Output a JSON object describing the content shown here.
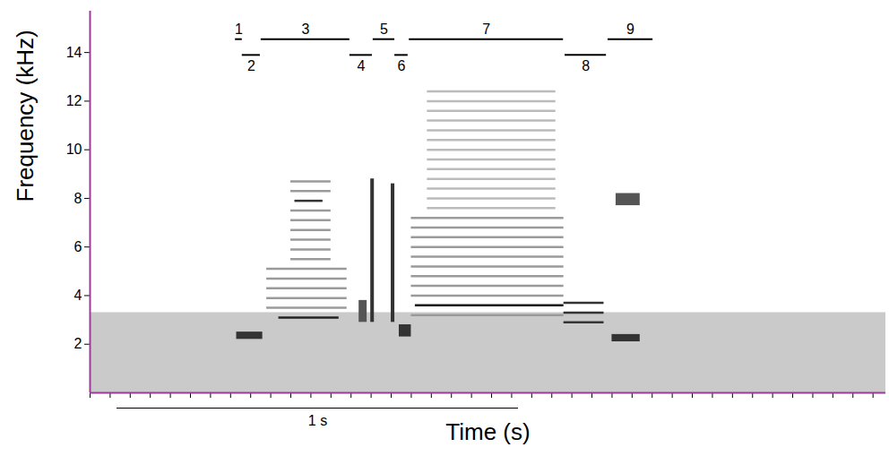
{
  "chart_data": {
    "type": "spectrogram",
    "xlabel": "Time (s)",
    "ylabel": "Frequency (kHz)",
    "xlim": [
      0,
      1.982
    ],
    "ylim": [
      0,
      15.7
    ],
    "yticks": [
      2,
      4,
      6,
      8,
      10,
      12,
      14
    ],
    "xticks": [
      0,
      0.05,
      0.1,
      0.15,
      0.2,
      0.25,
      0.3,
      0.35,
      0.4,
      0.45,
      0.5,
      0.55,
      0.6,
      0.65,
      0.7,
      0.75,
      0.8,
      0.85,
      0.9,
      0.95,
      1,
      1.05,
      1.1,
      1.15,
      1.2,
      1.25,
      1.3,
      1.35,
      1.4,
      1.45,
      1.5,
      1.55,
      1.6,
      1.65,
      1.7,
      1.75,
      1.8,
      1.85,
      1.9,
      1.95
    ],
    "tick_labels": "y",
    "grid": false,
    "color": "#9a3c9a",
    "noise": {
      "t": [
        0,
        1.982
      ],
      "f": [
        0,
        3.3
      ],
      "color": "#b8b8b8"
    },
    "harmonics": [
      {
        "t": [
          0.44,
          0.64
        ],
        "f": [
          3.5,
          3.9,
          4.3,
          4.7,
          5.1
        ],
        "color": "#9a9a9a"
      },
      {
        "t": [
          0.47,
          0.62
        ],
        "f": [
          3.1
        ],
        "color": "#222222"
      },
      {
        "t": [
          0.5,
          0.6
        ],
        "f": [
          5.5,
          5.9,
          6.3,
          6.7,
          7.1,
          7.5,
          8.3,
          8.7
        ],
        "color": "#9a9a9a"
      },
      {
        "t": [
          0.51,
          0.58
        ],
        "f": [
          7.9
        ],
        "color": "#333333"
      },
      {
        "t": [
          0.8,
          1.18
        ],
        "f": [
          3.2,
          4.0,
          4.4,
          4.8,
          5.2,
          5.6,
          6.0,
          6.4,
          6.8,
          7.2
        ],
        "color": "#9a9a9a"
      },
      {
        "t": [
          0.81,
          1.18
        ],
        "f": [
          3.6
        ],
        "color": "#111111"
      },
      {
        "t": [
          0.84,
          1.16
        ],
        "f": [
          7.6,
          8.0,
          8.4,
          8.8,
          9.2,
          9.6,
          10.0,
          10.4,
          10.8,
          11.2,
          11.6,
          12.0,
          12.4
        ],
        "color": "#bbbbbb"
      },
      {
        "t": [
          1.18,
          1.28
        ],
        "f": [
          2.9,
          3.3,
          3.7
        ],
        "color": "#333333"
      }
    ],
    "blobs": [
      {
        "t": [
          0.365,
          0.43
        ],
        "f": [
          2.2,
          2.5
        ],
        "color": "#333333"
      },
      {
        "t": [
          0.67,
          0.69
        ],
        "f": [
          2.9,
          3.8
        ],
        "color": "#555555"
      },
      {
        "t": [
          0.699,
          0.708
        ],
        "f": [
          2.9,
          8.8
        ],
        "color": "#333333"
      },
      {
        "t": [
          0.75,
          0.759
        ],
        "f": [
          2.9,
          8.6
        ],
        "color": "#333333"
      },
      {
        "t": [
          0.77,
          0.8
        ],
        "f": [
          2.3,
          2.8
        ],
        "color": "#333333"
      },
      {
        "t": [
          1.3,
          1.37
        ],
        "f": [
          2.1,
          2.4
        ],
        "color": "#333333"
      },
      {
        "t": [
          1.31,
          1.37
        ],
        "f": [
          7.7,
          8.2
        ],
        "color": "#555555"
      }
    ],
    "segments": [
      {
        "label": "1",
        "t": [
          0.362,
          0.379
        ],
        "f": 14.55
      },
      {
        "label": "2",
        "t": [
          0.379,
          0.424
        ],
        "f": 13.9
      },
      {
        "label": "3",
        "t": [
          0.426,
          0.647
        ],
        "f": 14.55
      },
      {
        "label": "4",
        "t": [
          0.647,
          0.703
        ],
        "f": 13.9
      },
      {
        "label": "5",
        "t": [
          0.705,
          0.759
        ],
        "f": 14.55
      },
      {
        "label": "6",
        "t": [
          0.759,
          0.792
        ],
        "f": 13.9
      },
      {
        "label": "7",
        "t": [
          0.795,
          1.179
        ],
        "f": 14.55
      },
      {
        "label": "8",
        "t": [
          1.183,
          1.286
        ],
        "f": 13.9
      },
      {
        "label": "9",
        "t": [
          1.29,
          1.402
        ],
        "f": 14.55
      }
    ],
    "scale_bar": {
      "t": [
        0.067,
        1.067
      ],
      "label": "1 s"
    }
  }
}
